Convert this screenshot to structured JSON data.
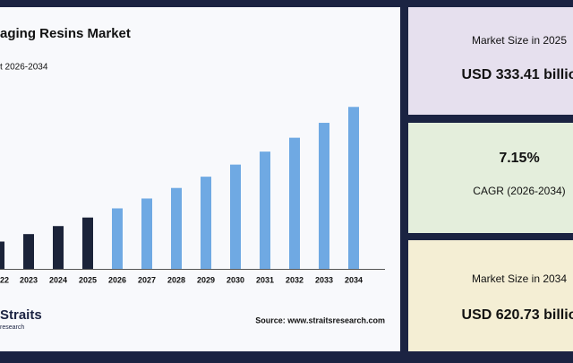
{
  "chart_data": {
    "type": "bar",
    "title": "aging Resins Market",
    "subtitle": "t 2026-2034",
    "categories": [
      "22",
      "2023",
      "2024",
      "2025",
      "2026",
      "2027",
      "2028",
      "2029",
      "2030",
      "2031",
      "2032",
      "2033",
      "2034"
    ],
    "values": [
      271.0,
      290.4,
      311.2,
      333.41,
      357.2,
      382.8,
      410.2,
      439.5,
      470.9,
      504.6,
      540.7,
      579.4,
      620.73
    ],
    "colors": [
      "#1b2339",
      "#1b2339",
      "#1b2339",
      "#1b2339",
      "#6fa9e3",
      "#6fa9e3",
      "#6fa9e3",
      "#6fa9e3",
      "#6fa9e3",
      "#6fa9e3",
      "#6fa9e3",
      "#6fa9e3",
      "#6fa9e3"
    ],
    "ylim": [
      200,
      640
    ],
    "source": "Source: www.straitsresearch.com",
    "logo": "Straits",
    "logo_sub": "research"
  },
  "cards": [
    {
      "label": "Market Size in 2025",
      "value": "USD 333.41 billio"
    },
    {
      "label": "CAGR (2026-2034)",
      "value": "7.15%"
    },
    {
      "label": "Market Size in 2034",
      "value": "USD 620.73 billio"
    }
  ]
}
